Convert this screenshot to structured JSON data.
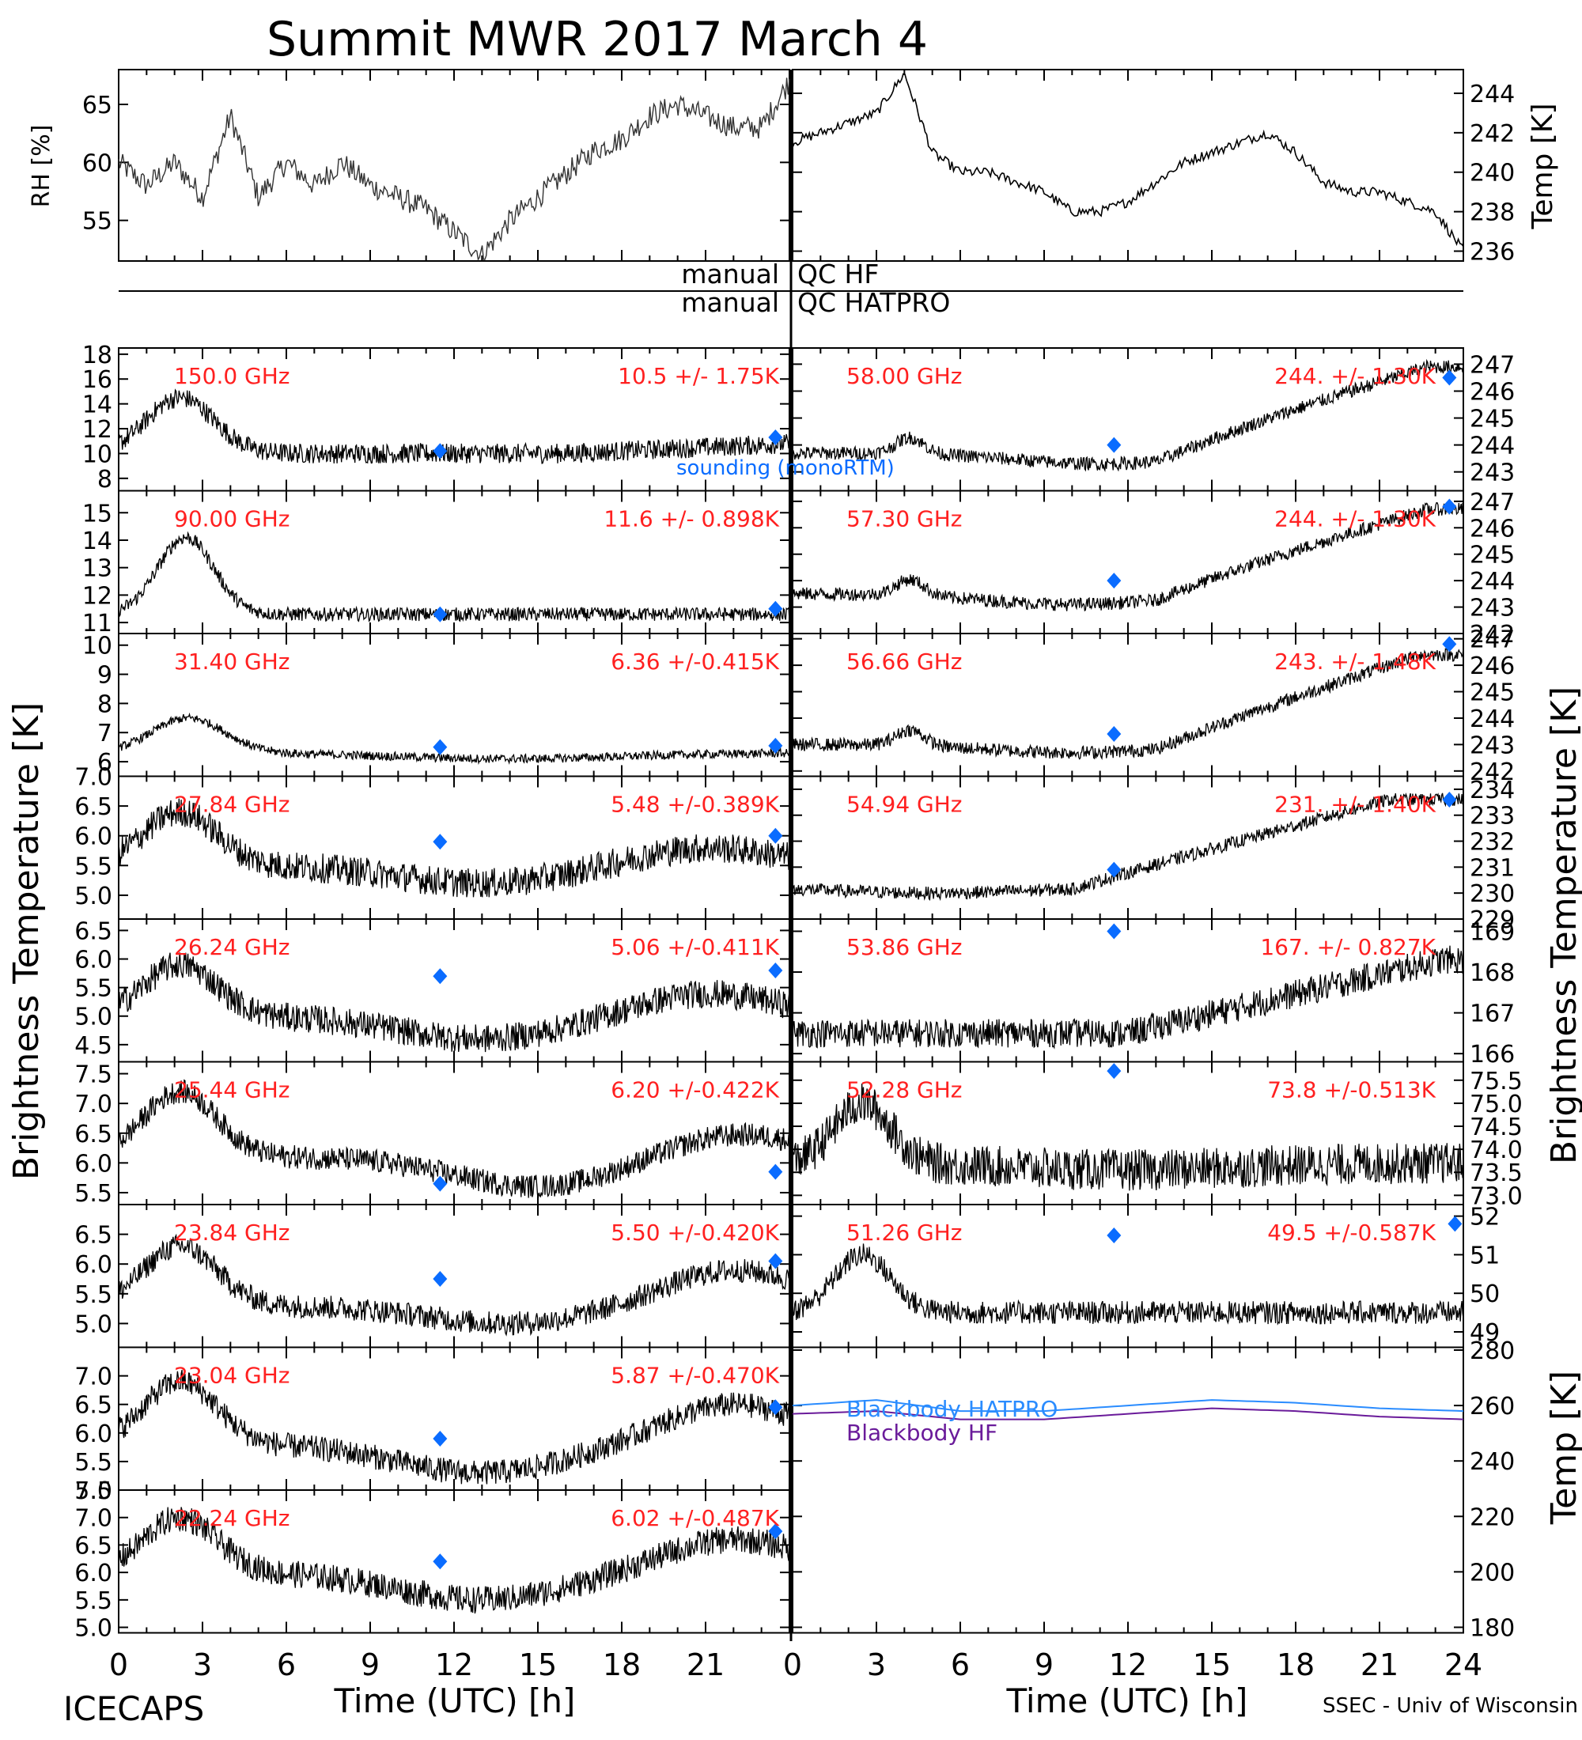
{
  "title": "Summit MWR 2017 March  4",
  "footer": {
    "left": "ICECAPS",
    "right": "SSEC - Univ of Wisconsin",
    "xlabel": "Time (UTC) [h]"
  },
  "colors": {
    "label_red": "#ff2020",
    "marker_blue": "#0a6cff",
    "line_blue": "#2a8cff",
    "line_purple": "#6a1b9a",
    "trace": "#000000"
  },
  "x_ticks": [
    "0",
    "3",
    "6",
    "9",
    "12",
    "15",
    "18",
    "21",
    "24"
  ],
  "x_range_hours": [
    0,
    24
  ],
  "rh_panel": {
    "ylabel_left": "RH [%]",
    "ylabel_right": "Temp [K]",
    "left_ticks": [
      "55",
      "60",
      "65"
    ],
    "left_range": [
      51.5,
      68
    ],
    "right_ticks": [
      "236",
      "238",
      "240",
      "242",
      "244"
    ],
    "right_range": [
      235.5,
      245.2
    ]
  },
  "qc": {
    "row1_left": "manual",
    "row1_right": "QC HF",
    "row2_left": "manual",
    "row2_right": "QC HATPRO"
  },
  "bt_label_left": "Brightness Temperature [K]",
  "bt_label_right": "Brightness Temperature [K]",
  "temp_label_right": "Temp [K]",
  "sounding_label": "sounding (monoRTM)",
  "left_panels": [
    {
      "freq": "150.0 GHz",
      "stat": "10.5 +/-  1.75K",
      "ylim": [
        7,
        18.5
      ],
      "ticks": [
        "8",
        "10",
        "12",
        "14",
        "16",
        "18"
      ],
      "diamonds": [
        [
          11.5,
          10.2
        ],
        [
          23.5,
          11.3
        ]
      ]
    },
    {
      "freq": "90.00 GHz",
      "stat": "11.6 +/- 0.898K",
      "ylim": [
        10.6,
        15.8
      ],
      "ticks": [
        "11",
        "12",
        "13",
        "14",
        "15"
      ],
      "diamonds": [
        [
          11.5,
          11.3
        ],
        [
          23.5,
          11.5
        ]
      ]
    },
    {
      "freq": "31.40 GHz",
      "stat": "6.36 +/-0.415K",
      "ylim": [
        5.5,
        10.4
      ],
      "ticks": [
        "6",
        "7",
        "8",
        "9",
        "10"
      ],
      "diamonds": [
        [
          11.5,
          6.5
        ],
        [
          23.5,
          6.55
        ]
      ]
    },
    {
      "freq": "27.84 GHz",
      "stat": "5.48 +/-0.389K",
      "ylim": [
        4.6,
        7.0
      ],
      "ticks": [
        "5.0",
        "5.5",
        "6.0",
        "6.5",
        "7.0"
      ],
      "diamonds": [
        [
          11.5,
          5.9
        ],
        [
          23.5,
          6.0
        ]
      ]
    },
    {
      "freq": "26.24 GHz",
      "stat": "5.06 +/-0.411K",
      "ylim": [
        4.2,
        6.7
      ],
      "ticks": [
        "4.5",
        "5.0",
        "5.5",
        "6.0",
        "6.5"
      ],
      "diamonds": [
        [
          11.5,
          5.7
        ],
        [
          23.5,
          5.8
        ]
      ]
    },
    {
      "freq": "25.44 GHz",
      "stat": "6.20 +/-0.422K",
      "ylim": [
        5.3,
        7.7
      ],
      "ticks": [
        "5.5",
        "6.0",
        "6.5",
        "7.0",
        "7.5"
      ],
      "diamonds": [
        [
          11.5,
          5.65
        ],
        [
          23.5,
          5.85
        ]
      ]
    },
    {
      "freq": "23.84 GHz",
      "stat": "5.50 +/-0.420K",
      "ylim": [
        4.6,
        7.0
      ],
      "ticks": [
        "5.0",
        "5.5",
        "6.0",
        "6.5"
      ],
      "diamonds": [
        [
          11.5,
          5.75
        ],
        [
          23.5,
          6.05
        ]
      ]
    },
    {
      "freq": "23.04 GHz",
      "stat": "5.87 +/-0.470K",
      "ylim": [
        5.0,
        7.5
      ],
      "ticks": [
        "5.0",
        "5.5",
        "6.0",
        "6.5",
        "7.0"
      ],
      "diamonds": [
        [
          11.5,
          5.9
        ],
        [
          23.5,
          6.45
        ]
      ]
    },
    {
      "freq": "22.24 GHz",
      "stat": "6.02 +/-0.487K",
      "ylim": [
        4.9,
        7.5
      ],
      "ticks": [
        "5.0",
        "5.5",
        "6.0",
        "6.5",
        "7.0",
        "7.5"
      ],
      "diamonds": [
        [
          11.5,
          6.2
        ],
        [
          23.5,
          6.75
        ]
      ]
    }
  ],
  "right_panels": [
    {
      "freq": "58.00 GHz",
      "stat": "244. +/- 1.30K",
      "ylim": [
        242.3,
        247.6
      ],
      "ticks": [
        "243",
        "244",
        "245",
        "246",
        "247"
      ],
      "diamonds": [
        [
          11.5,
          244.0
        ],
        [
          23.5,
          246.5
        ]
      ]
    },
    {
      "freq": "57.30 GHz",
      "stat": "244. +/- 1.30K",
      "ylim": [
        242.0,
        247.4
      ],
      "ticks": [
        "242",
        "243",
        "244",
        "245",
        "246",
        "247"
      ],
      "diamonds": [
        [
          11.5,
          244.0
        ],
        [
          23.5,
          246.8
        ]
      ]
    },
    {
      "freq": "56.66 GHz",
      "stat": "243. +/- 1.48K",
      "ylim": [
        241.8,
        247.2
      ],
      "ticks": [
        "242",
        "243",
        "244",
        "245",
        "246",
        "247"
      ],
      "diamonds": [
        [
          11.5,
          243.4
        ],
        [
          23.5,
          246.8
        ]
      ]
    },
    {
      "freq": "54.94 GHz",
      "stat": "231. +/- 1.40K",
      "ylim": [
        229.0,
        234.5
      ],
      "ticks": [
        "229",
        "230",
        "231",
        "232",
        "233",
        "234"
      ],
      "diamonds": [
        [
          11.5,
          230.9
        ],
        [
          23.5,
          233.6
        ]
      ]
    },
    {
      "freq": "53.86 GHz",
      "stat": "167. +/- 0.827K",
      "ylim": [
        165.8,
        169.3
      ],
      "ticks": [
        "166",
        "167",
        "168",
        "169"
      ],
      "diamonds": [
        [
          11.5,
          169.0
        ]
      ]
    },
    {
      "freq": "52.28 GHz",
      "stat": "73.8 +/-0.513K",
      "ylim": [
        72.8,
        75.9
      ],
      "ticks": [
        "73.0",
        "73.5",
        "74.0",
        "74.5",
        "75.0",
        "75.5"
      ],
      "diamonds": [
        [
          11.5,
          75.7
        ]
      ]
    },
    {
      "freq": "51.26 GHz",
      "stat": "49.5 +/-0.587K",
      "ylim": [
        48.6,
        52.3
      ],
      "ticks": [
        "49",
        "50",
        "51",
        "52"
      ],
      "diamonds": [
        [
          11.5,
          51.5
        ],
        [
          23.7,
          51.8
        ]
      ]
    }
  ],
  "blackbody_panel": {
    "ticks": [
      "180",
      "200",
      "220",
      "240",
      "260",
      "280"
    ],
    "ylim": [
      178,
      281
    ],
    "hatpro_label": "Blackbody HATPRO",
    "hf_label": "Blackbody HF"
  },
  "chart_data": {
    "type": "line",
    "title": "Summit MWR 2017 March  4",
    "xlabel": "Time (UTC) [h]",
    "ylabel": "Brightness Temperature [K]",
    "x_range": [
      0,
      24
    ],
    "series": [
      {
        "name": "RH [%]",
        "x": [
          0,
          1,
          2,
          3,
          4,
          5,
          6,
          7,
          8,
          9,
          10,
          11,
          12,
          13,
          14,
          15,
          16,
          17,
          18,
          19,
          20,
          21,
          22,
          23,
          24
        ],
        "values": [
          60,
          58,
          60,
          57,
          64,
          57,
          60,
          58,
          60,
          58,
          57,
          56,
          54,
          52,
          55,
          57,
          59,
          61,
          62,
          64,
          65,
          64,
          63,
          63,
          67
        ]
      },
      {
        "name": "Temp [K]",
        "x": [
          0,
          1,
          2,
          3,
          4,
          5,
          6,
          7,
          8,
          9,
          10,
          11,
          12,
          13,
          14,
          15,
          16,
          17,
          18,
          19,
          20,
          21,
          22,
          23,
          24
        ],
        "values": [
          241.5,
          242,
          242.5,
          243,
          245,
          241,
          240,
          240,
          239.5,
          239,
          238,
          238,
          238.5,
          239.5,
          240.5,
          241,
          241.5,
          242,
          241,
          239.5,
          239,
          239,
          238.5,
          238,
          236
        ]
      },
      {
        "name": "Blackbody HATPRO",
        "x": [
          0,
          3,
          6,
          9,
          12,
          15,
          18,
          21,
          24
        ],
        "values": [
          260,
          262,
          258,
          258,
          260,
          262,
          261,
          259,
          258
        ]
      },
      {
        "name": "Blackbody HF",
        "x": [
          0,
          3,
          6,
          9,
          12,
          15,
          18,
          21,
          24
        ],
        "values": [
          257,
          258,
          255,
          255,
          257,
          259,
          258,
          256,
          255
        ]
      }
    ]
  }
}
